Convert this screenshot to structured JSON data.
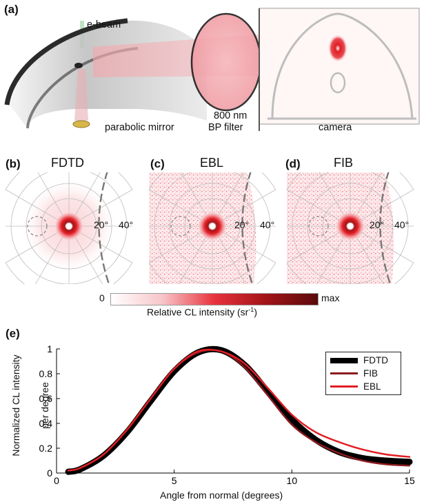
{
  "panel_a": {
    "label": "(a)",
    "ebeam": "e-beam",
    "filter_line1": "800 nm",
    "filter_line2": "BP filter",
    "mirror": "parabolic mirror",
    "camera": "camera"
  },
  "polar_panels": [
    {
      "label": "(b)",
      "title": "FDTD",
      "ring_labels": [
        "20°",
        "40°"
      ]
    },
    {
      "label": "(c)",
      "title": "EBL",
      "ring_labels": [
        "20°",
        "40°"
      ]
    },
    {
      "label": "(d)",
      "title": "FIB",
      "ring_labels": [
        "20°",
        "40°"
      ]
    }
  ],
  "colorbar": {
    "min_label": "0",
    "max_label": "max",
    "label": "Relative CL intensity (sr",
    "label_sup": "-1",
    "label_end": ")",
    "colors": [
      "#ffffff",
      "#f7c5c9",
      "#e8323c",
      "#a11418",
      "#5a0a0c"
    ]
  },
  "panel_e": {
    "label": "(e)"
  },
  "chart_data": {
    "type": "line",
    "xlabel": "Angle from normal (degrees)",
    "ylabel_line1": "Normalized CL intensity",
    "ylabel_line2": "per degree",
    "xlim": [
      0,
      15
    ],
    "ylim": [
      0,
      1
    ],
    "x_ticks": [
      "0",
      "5",
      "10",
      "15"
    ],
    "y_ticks": [
      "0",
      "0.2",
      "0.4",
      "0.6",
      "0.8",
      "1"
    ],
    "legend_placement": "top-right",
    "x": [
      0.5,
      1,
      2,
      3,
      4,
      5,
      6,
      7,
      8,
      9,
      10,
      11,
      12,
      13,
      14,
      15
    ],
    "series": [
      {
        "name": "FDTD",
        "color": "#000000",
        "values": [
          0.01,
          0.03,
          0.14,
          0.33,
          0.58,
          0.82,
          0.97,
          0.99,
          0.87,
          0.65,
          0.43,
          0.27,
          0.17,
          0.12,
          0.1,
          0.09
        ]
      },
      {
        "name": "FIB",
        "color": "#8b1a1f",
        "values": [
          0.02,
          0.04,
          0.15,
          0.35,
          0.6,
          0.84,
          0.97,
          0.98,
          0.85,
          0.62,
          0.39,
          0.25,
          0.16,
          0.1,
          0.07,
          0.06
        ]
      },
      {
        "name": "EBL",
        "color": "#e01e24",
        "values": [
          0.02,
          0.04,
          0.15,
          0.35,
          0.6,
          0.84,
          0.98,
          0.98,
          0.88,
          0.68,
          0.47,
          0.33,
          0.25,
          0.19,
          0.15,
          0.13
        ]
      }
    ]
  }
}
